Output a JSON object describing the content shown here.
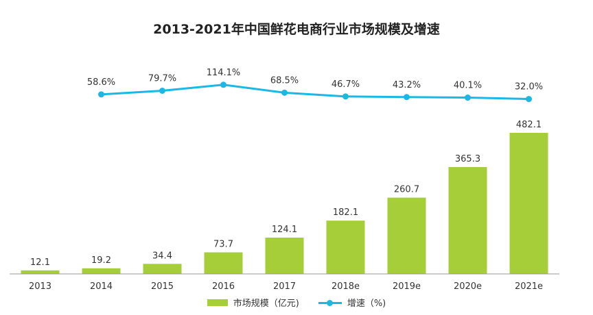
{
  "chart_data": {
    "type": "bar",
    "title": "2013-2021年中国鲜花电商行业市场规模及增速",
    "categories": [
      "2013",
      "2014",
      "2015",
      "2016",
      "2017",
      "2018e",
      "2019e",
      "2020e",
      "2021e"
    ],
    "series": [
      {
        "name": "市场规模（亿元)",
        "type": "bar",
        "color": "#A6CE39",
        "values": [
          12.1,
          19.2,
          34.4,
          73.7,
          124.1,
          182.1,
          260.7,
          365.3,
          482.1
        ],
        "labels": [
          "12.1",
          "19.2",
          "34.4",
          "73.7",
          "124.1",
          "182.1",
          "260.7",
          "365.3",
          "482.1"
        ]
      },
      {
        "name": "增速（%)",
        "type": "line",
        "color": "#1BB8E6",
        "values": [
          null,
          58.6,
          79.7,
          114.1,
          68.5,
          46.7,
          43.2,
          40.1,
          32.0
        ],
        "labels": [
          "",
          "58.6%",
          "79.7%",
          "114.1%",
          "68.5%",
          "46.7%",
          "43.2%",
          "40.1%",
          "32.0%"
        ]
      }
    ],
    "legend_position": "bottom",
    "grid": false
  }
}
